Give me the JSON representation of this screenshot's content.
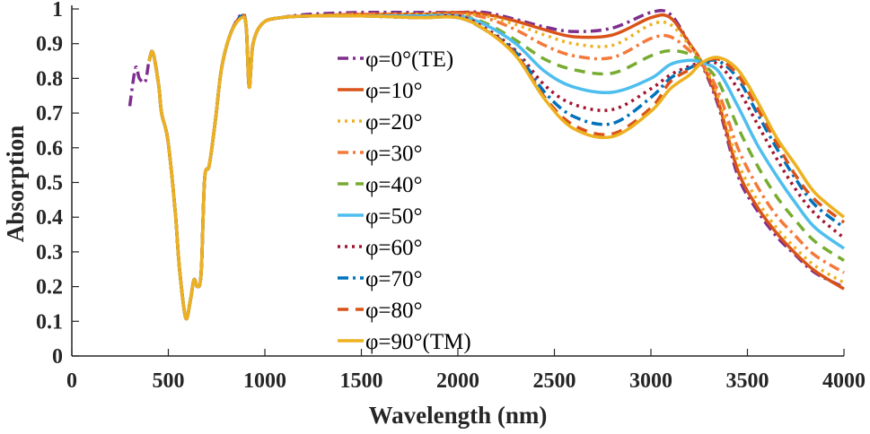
{
  "chart_data": {
    "type": "line",
    "title": "",
    "xlabel": "Wavelength (nm)",
    "ylabel": "Absorption",
    "xlim": [
      0,
      4000
    ],
    "ylim": [
      0,
      1
    ],
    "xticks": [
      "0",
      "500",
      "1000",
      "1500",
      "2000",
      "2500",
      "3000",
      "3500",
      "4000"
    ],
    "yticks": [
      "0",
      "0.1",
      "0.2",
      "0.3",
      "0.4",
      "0.5",
      "0.6",
      "0.7",
      "0.8",
      "0.9",
      "1"
    ],
    "grid": false,
    "legend_position": "center",
    "x": [
      300,
      330,
      350,
      380,
      400,
      420,
      450,
      465,
      498,
      535,
      558,
      590,
      614,
      633,
      651,
      670,
      688,
      712,
      744,
      776,
      823,
      880,
      903,
      919,
      939,
      991,
      1084,
      1240,
      1500,
      1800,
      2000,
      2140,
      2300,
      2450,
      2600,
      2800,
      3000,
      3100,
      3200,
      3264,
      3350,
      3450,
      3550,
      3650,
      3750,
      3850,
      4000
    ],
    "series": [
      {
        "name": "φ=0°(TE)",
        "color": "#7E2F8E",
        "style": "dashdot",
        "values": [
          0.72,
          0.83,
          0.8,
          0.79,
          0.85,
          0.875,
          0.78,
          0.7,
          0.62,
          0.42,
          0.25,
          0.11,
          0.16,
          0.22,
          0.2,
          0.24,
          0.51,
          0.55,
          0.68,
          0.83,
          0.93,
          0.985,
          0.95,
          0.775,
          0.9,
          0.96,
          0.975,
          0.985,
          0.99,
          0.99,
          0.99,
          0.99,
          0.97,
          0.948,
          0.935,
          0.945,
          0.99,
          0.985,
          0.9,
          0.84,
          0.72,
          0.52,
          0.42,
          0.345,
          0.29,
          0.24,
          0.198
        ]
      },
      {
        "name": "φ=10°",
        "color": "#D95319",
        "style": "solid",
        "values": [
          null,
          null,
          null,
          null,
          0.85,
          0.875,
          0.78,
          0.7,
          0.62,
          0.42,
          0.25,
          0.11,
          0.16,
          0.22,
          0.2,
          0.24,
          0.51,
          0.55,
          0.68,
          0.83,
          0.93,
          0.98,
          0.95,
          0.775,
          0.9,
          0.96,
          0.975,
          0.98,
          0.985,
          0.985,
          0.99,
          0.985,
          0.965,
          0.94,
          0.92,
          0.925,
          0.975,
          0.975,
          0.9,
          0.845,
          0.73,
          0.535,
          0.43,
          0.355,
          0.295,
          0.245,
          0.193
        ]
      },
      {
        "name": "φ=20°",
        "color": "#EDB120",
        "style": "dotted",
        "values": [
          null,
          null,
          null,
          null,
          0.85,
          0.875,
          0.78,
          0.7,
          0.62,
          0.42,
          0.25,
          0.11,
          0.16,
          0.22,
          0.2,
          0.24,
          0.51,
          0.55,
          0.68,
          0.83,
          0.93,
          0.98,
          0.95,
          0.775,
          0.9,
          0.96,
          0.975,
          0.98,
          0.985,
          0.985,
          0.985,
          0.98,
          0.955,
          0.925,
          0.9,
          0.895,
          0.955,
          0.955,
          0.895,
          0.845,
          0.745,
          0.56,
          0.45,
          0.37,
          0.31,
          0.26,
          0.211
        ]
      },
      {
        "name": "φ=30°",
        "color": "#F5793A",
        "style": "dashdot",
        "values": [
          null,
          null,
          null,
          null,
          0.85,
          0.875,
          0.78,
          0.7,
          0.62,
          0.42,
          0.25,
          0.11,
          0.16,
          0.22,
          0.2,
          0.24,
          0.51,
          0.55,
          0.68,
          0.83,
          0.93,
          0.98,
          0.95,
          0.775,
          0.9,
          0.96,
          0.975,
          0.98,
          0.985,
          0.98,
          0.985,
          0.975,
          0.94,
          0.895,
          0.865,
          0.86,
          0.915,
          0.92,
          0.88,
          0.845,
          0.76,
          0.6,
          0.49,
          0.405,
          0.345,
          0.29,
          0.24
        ]
      },
      {
        "name": "φ=40°",
        "color": "#77AC30",
        "style": "dashed",
        "values": [
          null,
          null,
          null,
          null,
          0.85,
          0.875,
          0.78,
          0.7,
          0.62,
          0.42,
          0.25,
          0.11,
          0.16,
          0.22,
          0.2,
          0.24,
          0.51,
          0.55,
          0.68,
          0.83,
          0.93,
          0.98,
          0.95,
          0.775,
          0.9,
          0.96,
          0.975,
          0.98,
          0.98,
          0.98,
          0.98,
          0.96,
          0.91,
          0.855,
          0.825,
          0.815,
          0.865,
          0.88,
          0.87,
          0.845,
          0.79,
          0.66,
          0.55,
          0.46,
          0.39,
          0.33,
          0.275
        ]
      },
      {
        "name": "φ=50°",
        "color": "#4DBEEE",
        "style": "solid",
        "values": [
          null,
          null,
          null,
          null,
          0.85,
          0.875,
          0.78,
          0.7,
          0.62,
          0.42,
          0.25,
          0.11,
          0.16,
          0.22,
          0.2,
          0.24,
          0.51,
          0.55,
          0.68,
          0.83,
          0.93,
          0.98,
          0.95,
          0.775,
          0.9,
          0.96,
          0.975,
          0.98,
          0.98,
          0.98,
          0.98,
          0.955,
          0.9,
          0.82,
          0.775,
          0.76,
          0.8,
          0.84,
          0.852,
          0.845,
          0.82,
          0.72,
          0.61,
          0.52,
          0.44,
          0.37,
          0.31
        ]
      },
      {
        "name": "φ=60°",
        "color": "#A2142F",
        "style": "dotted",
        "values": [
          null,
          null,
          null,
          null,
          0.85,
          0.875,
          0.78,
          0.7,
          0.62,
          0.42,
          0.25,
          0.11,
          0.16,
          0.22,
          0.2,
          0.24,
          0.51,
          0.55,
          0.68,
          0.83,
          0.93,
          0.98,
          0.95,
          0.775,
          0.9,
          0.96,
          0.975,
          0.98,
          0.98,
          0.975,
          0.98,
          0.945,
          0.88,
          0.78,
          0.725,
          0.71,
          0.77,
          0.81,
          0.835,
          0.845,
          0.84,
          0.77,
          0.67,
          0.57,
          0.48,
          0.41,
          0.34
        ]
      },
      {
        "name": "φ=70°",
        "color": "#0072BD",
        "style": "dashdot",
        "values": [
          null,
          null,
          null,
          null,
          0.85,
          0.875,
          0.78,
          0.7,
          0.62,
          0.42,
          0.25,
          0.11,
          0.16,
          0.22,
          0.2,
          0.24,
          0.51,
          0.55,
          0.68,
          0.83,
          0.93,
          0.98,
          0.95,
          0.775,
          0.9,
          0.96,
          0.975,
          0.98,
          0.98,
          0.975,
          0.975,
          0.94,
          0.875,
          0.76,
          0.69,
          0.67,
          0.745,
          0.8,
          0.83,
          0.845,
          0.85,
          0.8,
          0.7,
          0.6,
          0.51,
          0.435,
          0.37
        ]
      },
      {
        "name": "φ=80°",
        "color": "#D95319",
        "style": "dashed",
        "values": [
          null,
          null,
          null,
          null,
          0.85,
          0.875,
          0.78,
          0.7,
          0.62,
          0.42,
          0.25,
          0.11,
          0.16,
          0.22,
          0.2,
          0.24,
          0.51,
          0.55,
          0.68,
          0.83,
          0.93,
          0.98,
          0.95,
          0.775,
          0.9,
          0.96,
          0.975,
          0.98,
          0.98,
          0.975,
          0.975,
          0.94,
          0.87,
          0.745,
          0.665,
          0.64,
          0.715,
          0.79,
          0.825,
          0.845,
          0.855,
          0.81,
          0.715,
          0.615,
          0.52,
          0.45,
          0.385
        ]
      },
      {
        "name": "φ=90°(TM)",
        "color": "#EDB120",
        "style": "solid",
        "values": [
          null,
          null,
          null,
          null,
          0.85,
          0.875,
          0.78,
          0.7,
          0.62,
          0.42,
          0.25,
          0.11,
          0.16,
          0.22,
          0.2,
          0.24,
          0.51,
          0.55,
          0.68,
          0.83,
          0.93,
          0.975,
          0.95,
          0.775,
          0.9,
          0.96,
          0.975,
          0.98,
          0.98,
          0.975,
          0.975,
          0.94,
          0.865,
          0.74,
          0.655,
          0.632,
          0.705,
          0.77,
          0.81,
          0.845,
          0.86,
          0.825,
          0.735,
          0.63,
          0.55,
          0.47,
          0.4
        ]
      }
    ]
  }
}
